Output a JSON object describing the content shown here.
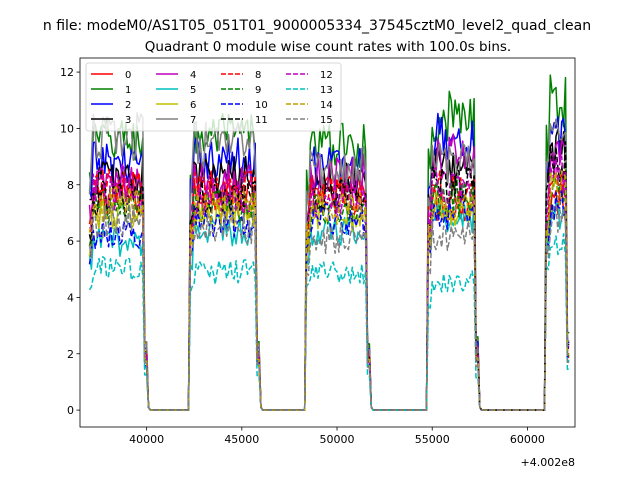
{
  "figure": {
    "suptitle": "n file: modeM0/AS1T05_051T01_9000005334_37545cztM0_level2_quad_clean",
    "title": "Quadrant 0 module wise count rates with 100.0s bins.",
    "x_offset_label": "+4.002e8"
  },
  "chart_data": {
    "type": "line",
    "title": "Quadrant 0 module wise count rates with 100.0s bins.",
    "x_offset": 400200000,
    "xlim": [
      36500,
      62500
    ],
    "ylim": [
      -0.6,
      12.5
    ],
    "xticks": [
      40000,
      45000,
      50000,
      55000,
      60000
    ],
    "xtick_labels": [
      "40000",
      "45000",
      "50000",
      "55000",
      "60000"
    ],
    "yticks": [
      0,
      2,
      4,
      6,
      8,
      10,
      12
    ],
    "ytick_labels": [
      "0",
      "2",
      "4",
      "6",
      "8",
      "10",
      "12"
    ],
    "bin_size_s": 100,
    "active_intervals": [
      [
        37000,
        40000
      ],
      [
        42300,
        45900
      ],
      [
        48400,
        51700
      ],
      [
        54800,
        57400
      ],
      [
        61000,
        62200
      ]
    ],
    "legend": {
      "position": "top-left",
      "columns": 4
    },
    "series": [
      {
        "name": "0",
        "color": "#ff0000",
        "dash": "solid",
        "rates": [
          7.6,
          7.8,
          7.7,
          7.3,
          7.5
        ]
      },
      {
        "name": "1",
        "color": "#008000",
        "dash": "solid",
        "rates": [
          9.6,
          9.7,
          9.4,
          10.4,
          11.0
        ]
      },
      {
        "name": "2",
        "color": "#0000ff",
        "dash": "solid",
        "rates": [
          8.8,
          8.9,
          8.7,
          9.7,
          9.6
        ]
      },
      {
        "name": "3",
        "color": "#000000",
        "dash": "solid",
        "rates": [
          8.3,
          8.3,
          8.2,
          8.7,
          9.3
        ]
      },
      {
        "name": "4",
        "color": "#bf00bf",
        "dash": "solid",
        "rates": [
          8.0,
          8.2,
          8.4,
          9.0,
          9.0
        ]
      },
      {
        "name": "5",
        "color": "#00bfbf",
        "dash": "solid",
        "rates": [
          6.0,
          6.4,
          6.3,
          6.9,
          7.0
        ]
      },
      {
        "name": "6",
        "color": "#bfbf00",
        "dash": "solid",
        "rates": [
          7.0,
          6.9,
          6.9,
          7.2,
          8.0
        ]
      },
      {
        "name": "7",
        "color": "#808080",
        "dash": "solid",
        "rates": [
          9.7,
          9.4,
          8.6,
          8.8,
          9.8
        ]
      },
      {
        "name": "8",
        "color": "#ff0000",
        "dash": "dashed",
        "rates": [
          7.9,
          7.8,
          7.6,
          7.8,
          8.0
        ]
      },
      {
        "name": "9",
        "color": "#008000",
        "dash": "dashed",
        "rates": [
          7.2,
          7.3,
          7.1,
          7.5,
          7.7
        ]
      },
      {
        "name": "10",
        "color": "#0000ff",
        "dash": "dashed",
        "rates": [
          6.3,
          6.7,
          6.8,
          7.0,
          7.3
        ]
      },
      {
        "name": "11",
        "color": "#000000",
        "dash": "dashed",
        "rates": [
          7.5,
          7.6,
          7.7,
          8.0,
          8.8
        ]
      },
      {
        "name": "12",
        "color": "#bf00bf",
        "dash": "dashed",
        "rates": [
          7.7,
          7.6,
          7.5,
          7.9,
          8.4
        ]
      },
      {
        "name": "13",
        "color": "#00bfbf",
        "dash": "dashed",
        "rates": [
          5.0,
          4.9,
          4.9,
          4.6,
          5.8
        ]
      },
      {
        "name": "14",
        "color": "#bfa000",
        "dash": "dashed",
        "rates": [
          7.3,
          7.2,
          7.2,
          7.4,
          7.9
        ]
      },
      {
        "name": "15",
        "color": "#808080",
        "dash": "dashed",
        "rates": [
          6.7,
          6.5,
          6.1,
          6.2,
          6.8
        ]
      }
    ]
  }
}
